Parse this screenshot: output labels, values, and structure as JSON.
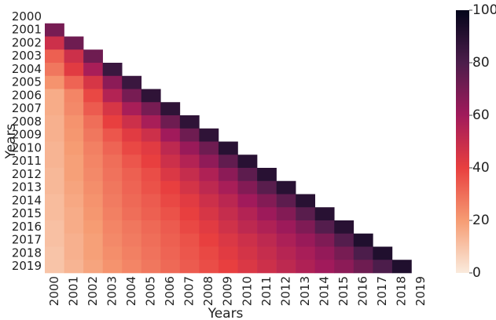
{
  "chart_data": {
    "type": "heatmap",
    "xlabel": "Years",
    "ylabel": "Years",
    "x_categories": [
      "2000",
      "2001",
      "2002",
      "2003",
      "2004",
      "2005",
      "2006",
      "2007",
      "2008",
      "2009",
      "2010",
      "2011",
      "2012",
      "2013",
      "2014",
      "2015",
      "2016",
      "2017",
      "2018",
      "2019"
    ],
    "y_categories": [
      "2000",
      "2001",
      "2002",
      "2003",
      "2004",
      "2005",
      "2006",
      "2007",
      "2008",
      "2009",
      "2010",
      "2011",
      "2012",
      "2013",
      "2014",
      "2015",
      "2016",
      "2017",
      "2018",
      "2019"
    ],
    "values": [
      [
        null,
        null,
        null,
        null,
        null,
        null,
        null,
        null,
        null,
        null,
        null,
        null,
        null,
        null,
        null,
        null,
        null,
        null,
        null,
        null
      ],
      [
        70,
        null,
        null,
        null,
        null,
        null,
        null,
        null,
        null,
        null,
        null,
        null,
        null,
        null,
        null,
        null,
        null,
        null,
        null,
        null
      ],
      [
        48,
        72,
        null,
        null,
        null,
        null,
        null,
        null,
        null,
        null,
        null,
        null,
        null,
        null,
        null,
        null,
        null,
        null,
        null,
        null
      ],
      [
        33,
        48,
        72,
        null,
        null,
        null,
        null,
        null,
        null,
        null,
        null,
        null,
        null,
        null,
        null,
        null,
        null,
        null,
        null,
        null
      ],
      [
        28,
        42,
        58,
        85,
        null,
        null,
        null,
        null,
        null,
        null,
        null,
        null,
        null,
        null,
        null,
        null,
        null,
        null,
        null,
        null
      ],
      [
        22,
        32,
        45,
        65,
        85,
        null,
        null,
        null,
        null,
        null,
        null,
        null,
        null,
        null,
        null,
        null,
        null,
        null,
        null,
        null
      ],
      [
        16,
        25,
        38,
        55,
        70,
        88,
        null,
        null,
        null,
        null,
        null,
        null,
        null,
        null,
        null,
        null,
        null,
        null,
        null,
        null
      ],
      [
        16,
        24,
        34,
        45,
        58,
        70,
        88,
        null,
        null,
        null,
        null,
        null,
        null,
        null,
        null,
        null,
        null,
        null,
        null,
        null
      ],
      [
        15,
        22,
        30,
        40,
        48,
        58,
        72,
        88,
        null,
        null,
        null,
        null,
        null,
        null,
        null,
        null,
        null,
        null,
        null,
        null
      ],
      [
        15,
        21,
        28,
        35,
        42,
        48,
        60,
        72,
        88,
        null,
        null,
        null,
        null,
        null,
        null,
        null,
        null,
        null,
        null,
        null
      ],
      [
        14,
        20,
        26,
        32,
        38,
        42,
        52,
        62,
        72,
        90,
        null,
        null,
        null,
        null,
        null,
        null,
        null,
        null,
        null,
        null
      ],
      [
        14,
        19,
        25,
        30,
        35,
        40,
        48,
        55,
        64,
        75,
        90,
        null,
        null,
        null,
        null,
        null,
        null,
        null,
        null,
        null
      ],
      [
        13,
        19,
        24,
        29,
        33,
        37,
        44,
        50,
        56,
        65,
        76,
        90,
        null,
        null,
        null,
        null,
        null,
        null,
        null,
        null
      ],
      [
        13,
        18,
        23,
        28,
        32,
        36,
        40,
        46,
        52,
        58,
        67,
        77,
        90,
        null,
        null,
        null,
        null,
        null,
        null,
        null
      ],
      [
        12,
        17,
        22,
        27,
        31,
        34,
        38,
        42,
        48,
        53,
        60,
        67,
        76,
        90,
        null,
        null,
        null,
        null,
        null,
        null
      ],
      [
        12,
        16,
        21,
        26,
        30,
        33,
        36,
        40,
        45,
        50,
        55,
        61,
        67,
        77,
        90,
        null,
        null,
        null,
        null,
        null
      ],
      [
        11,
        16,
        20,
        25,
        28,
        31,
        34,
        38,
        42,
        47,
        52,
        56,
        61,
        68,
        78,
        90,
        null,
        null,
        null,
        null
      ],
      [
        11,
        15,
        19,
        24,
        27,
        30,
        33,
        36,
        40,
        44,
        48,
        52,
        57,
        62,
        68,
        78,
        92,
        null,
        null,
        null
      ],
      [
        10,
        15,
        19,
        23,
        26,
        29,
        32,
        35,
        38,
        42,
        46,
        50,
        54,
        58,
        63,
        70,
        80,
        92,
        null,
        null
      ],
      [
        10,
        14,
        18,
        22,
        25,
        28,
        31,
        34,
        37,
        40,
        44,
        48,
        52,
        56,
        60,
        65,
        72,
        80,
        92,
        null
      ]
    ],
    "zlim": [
      0,
      100
    ],
    "zticks": [
      0,
      20,
      40,
      60,
      80,
      100
    ],
    "colorscale": [
      "#faebdd",
      "#f69c73",
      "#e83f3f",
      "#a11a5b",
      "#4c1d4b",
      "#03051a"
    ]
  }
}
